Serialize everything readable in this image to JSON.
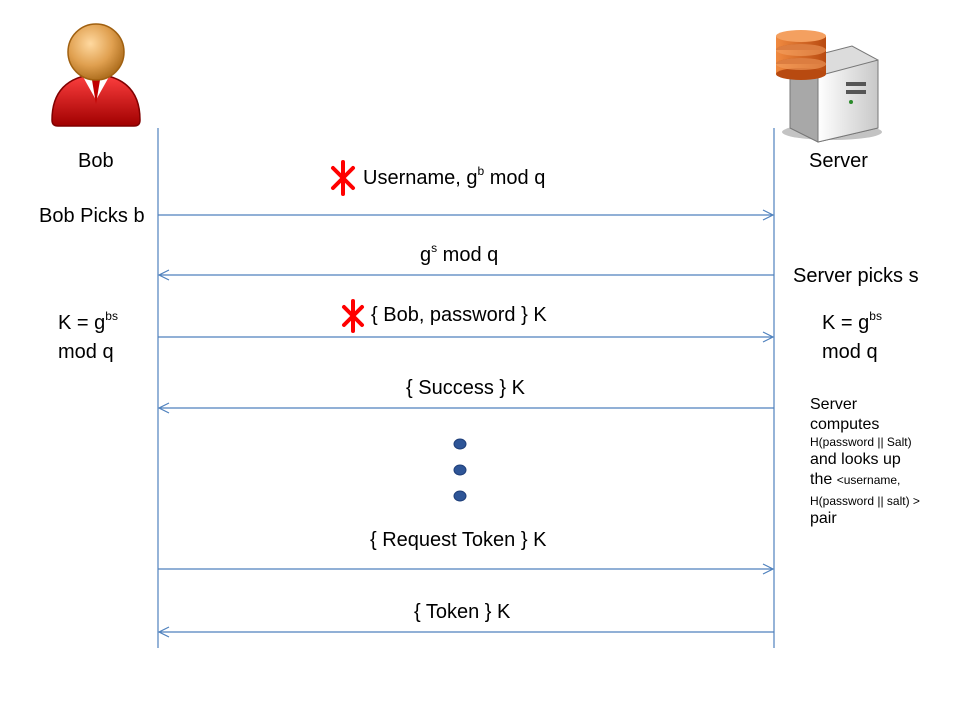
{
  "actors": {
    "bob": {
      "name": "Bob",
      "picks": "Bob Picks b",
      "key_lhs": "K = g",
      "key_exp": "bs",
      "key_mod": "mod q"
    },
    "server": {
      "name": "Server",
      "picks": "Server picks s",
      "key_lhs": "K = g",
      "key_exp": "bs",
      "key_mod": "mod q"
    }
  },
  "messages": [
    {
      "pre": "Username, g",
      "exp": "b",
      "post": " mod q",
      "direction": "bob-to-server",
      "marked": true
    },
    {
      "pre": "g",
      "exp": "s",
      "post": " mod q",
      "direction": "server-to-bob",
      "marked": false
    },
    {
      "text": "{ Bob, password } K",
      "direction": "bob-to-server",
      "marked": true
    },
    {
      "text": "{ Success } K",
      "direction": "server-to-bob",
      "marked": false
    },
    {
      "text": "{ Request Token } K",
      "direction": "bob-to-server",
      "marked": false
    },
    {
      "text": "{ Token } K",
      "direction": "server-to-bob",
      "marked": false
    }
  ],
  "server_note": {
    "l1": "Server",
    "l2": "computes",
    "l3": "H(password || Salt)",
    "l4": "and looks up",
    "l5": "the ",
    "l5_small": "<username,",
    "l6": "H(password || salt) >",
    "l7": "pair"
  },
  "colors": {
    "line": "#4f81bd",
    "mark": "#ff0000",
    "dots": "#2e5597"
  }
}
